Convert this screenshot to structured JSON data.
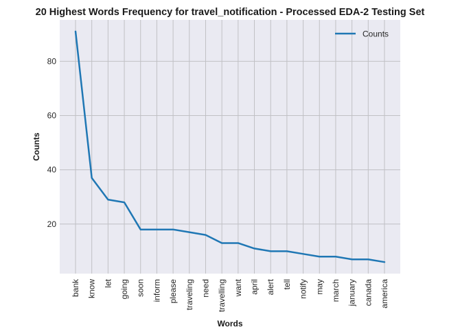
{
  "chart_data": {
    "type": "line",
    "title": "20 Highest Words Frequency for travel_notification - Processed EDA-2 Testing Set",
    "xlabel": "Words",
    "ylabel": "Counts",
    "categories": [
      "bank",
      "know",
      "let",
      "going",
      "soon",
      "inform",
      "please",
      "traveling",
      "need",
      "travelling",
      "want",
      "april",
      "alert",
      "tell",
      "notify",
      "may",
      "march",
      "january",
      "canada",
      "america"
    ],
    "series": [
      {
        "name": "Counts",
        "values": [
          91,
          37,
          29,
          28,
          18,
          18,
          18,
          17,
          16,
          13,
          13,
          11,
          10,
          10,
          9,
          8,
          8,
          7,
          7,
          6
        ]
      }
    ],
    "yticks": [
      20,
      40,
      60,
      80
    ],
    "ylim": [
      1.75,
      95.25
    ],
    "grid": true,
    "legend": "top-right",
    "colors": {
      "line": "#1f77b4",
      "plot_background": "#eaeaf2",
      "grid": "#c0c0c4"
    }
  }
}
